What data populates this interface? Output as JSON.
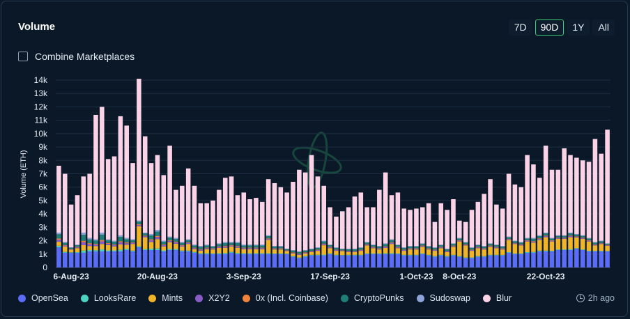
{
  "header": {
    "title": "Volume"
  },
  "range": {
    "options": [
      "7D",
      "90D",
      "1Y",
      "All"
    ],
    "selected": "90D"
  },
  "combine": {
    "label": "Combine Marketplaces"
  },
  "footer": {
    "updated": "2h ago"
  },
  "colors": {
    "background": "#0a1828",
    "grid": "#1f3044",
    "axis_text": "#e6edf5",
    "accent": "#3fd07a"
  },
  "chart_data": {
    "type": "bar",
    "stacked": true,
    "title": "Volume",
    "xlabel": "",
    "ylabel": "Volume (ETH)",
    "ylim": [
      0,
      14000
    ],
    "yticks": [
      0,
      1000,
      2000,
      3000,
      4000,
      5000,
      6000,
      7000,
      8000,
      9000,
      10000,
      11000,
      12000,
      13000,
      14000
    ],
    "ytick_labels": [
      "0",
      "1k",
      "2k",
      "3k",
      "4k",
      "5k",
      "6k",
      "7k",
      "8k",
      "9k",
      "10k",
      "11k",
      "12k",
      "13k",
      "14k"
    ],
    "xtick_labels": [
      {
        "index": 2,
        "label": "6-Aug-23"
      },
      {
        "index": 16,
        "label": "20-Aug-23"
      },
      {
        "index": 30,
        "label": "3-Sep-23"
      },
      {
        "index": 44,
        "label": "17-Sep-23"
      },
      {
        "index": 58,
        "label": "1-Oct-23"
      },
      {
        "index": 65,
        "label": "8-Oct-23"
      },
      {
        "index": 79,
        "label": "22-Oct-23"
      }
    ],
    "series_names": [
      "OpenSea",
      "LooksRare",
      "Mints",
      "X2Y2",
      "0x (Incl. Coinbase)",
      "CryptoPunks",
      "Sudoswap",
      "Blur"
    ],
    "series_colors": [
      "#5b6cf6",
      "#4ed3c3",
      "#f0b429",
      "#8a5cc6",
      "#f0843c",
      "#1f7f78",
      "#8ea4d8",
      "#fbd3e6"
    ],
    "totals": [
      7600,
      7000,
      4700,
      5400,
      6800,
      7000,
      11400,
      12000,
      8100,
      8300,
      11300,
      10600,
      7800,
      14100,
      9800,
      7800,
      8400,
      6900,
      9100,
      5800,
      6100,
      7400,
      6100,
      4800,
      4800,
      5000,
      5800,
      6700,
      6800,
      5400,
      5600,
      5100,
      5200,
      4900,
      6600,
      6300,
      6000,
      5600,
      6400,
      7300,
      7100,
      8400,
      6800,
      6100,
      4500,
      3800,
      4200,
      4500,
      5300,
      5600,
      4500,
      4500,
      5800,
      7100,
      5400,
      5600,
      4400,
      4300,
      4400,
      4500,
      4800,
      3400,
      4800,
      4300,
      5100,
      3500,
      3400,
      4300,
      4900,
      5500,
      6600,
      4700,
      4400,
      7000,
      6200,
      6000,
      8400,
      7700,
      6700,
      9100,
      7300,
      7300,
      8900,
      8400,
      8200,
      8000,
      7900,
      9600,
      8500,
      10300
    ],
    "base_totals": [
      2600,
      1900,
      1500,
      1700,
      2600,
      2200,
      2100,
      2600,
      2100,
      2000,
      2400,
      2200,
      2100,
      3500,
      2600,
      2500,
      2800,
      2000,
      2300,
      2200,
      1900,
      2100,
      1700,
      1600,
      1700,
      1600,
      1800,
      1900,
      1900,
      1900,
      1700,
      1700,
      1700,
      1700,
      2400,
      1600,
      1600,
      1400,
      1300,
      1200,
      1300,
      1400,
      1500,
      2000,
      1700,
      1500,
      1400,
      1400,
      1400,
      1500,
      1900,
      1700,
      1600,
      1800,
      2100,
      1700,
      1500,
      1600,
      1600,
      1800,
      1600,
      1500,
      1700,
      1400,
      1800,
      2200,
      1900,
      1500,
      1700,
      1600,
      1800,
      1700,
      1600,
      2300,
      2000,
      1900,
      2200,
      2200,
      2400,
      2600,
      2200,
      2400,
      2400,
      2600,
      2500,
      2400,
      2200,
      1900,
      2000,
      1800
    ],
    "opensea": [
      1500,
      1100,
      1100,
      1100,
      1100,
      1200,
      1200,
      1200,
      1200,
      1200,
      1200,
      1300,
      1200,
      1500,
      1300,
      1300,
      1300,
      1200,
      1300,
      1300,
      1200,
      1200,
      1100,
      1000,
      1000,
      1000,
      1000,
      1000,
      1100,
      1000,
      1000,
      1000,
      1000,
      1000,
      1000,
      1000,
      1000,
      1000,
      800,
      700,
      800,
      900,
      900,
      900,
      1000,
      900,
      900,
      900,
      900,
      900,
      1000,
      1000,
      1000,
      1000,
      1000,
      1000,
      900,
      900,
      900,
      1000,
      900,
      800,
      900,
      800,
      900,
      800,
      700,
      700,
      800,
      800,
      900,
      900,
      900,
      1100,
      1000,
      1000,
      1100,
      1100,
      1200,
      1200,
      1200,
      1300,
      1300,
      1300,
      1400,
      1300,
      1200,
      1200,
      1200,
      1200
    ],
    "mints": [
      300,
      400,
      200,
      300,
      400,
      300,
      300,
      400,
      400,
      300,
      400,
      300,
      500,
      1500,
      900,
      500,
      700,
      300,
      500,
      400,
      300,
      500,
      200,
      200,
      300,
      300,
      400,
      400,
      400,
      400,
      300,
      300,
      300,
      300,
      1000,
      300,
      300,
      200,
      200,
      200,
      200,
      200,
      300,
      700,
      400,
      300,
      300,
      200,
      200,
      300,
      600,
      400,
      300,
      400,
      700,
      400,
      300,
      400,
      400,
      500,
      400,
      400,
      500,
      300,
      600,
      1100,
      900,
      500,
      600,
      500,
      600,
      500,
      400,
      900,
      700,
      600,
      800,
      700,
      800,
      1000,
      700,
      800,
      800,
      900,
      800,
      800,
      700,
      400,
      500,
      400
    ]
  }
}
